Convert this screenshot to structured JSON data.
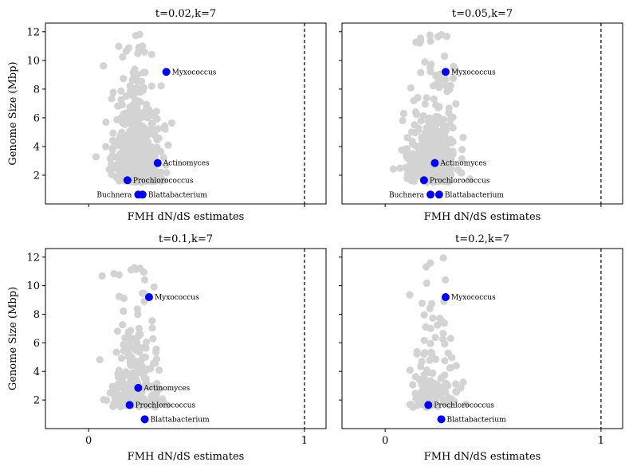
{
  "colors": {
    "background_points": "#d3d3d3",
    "highlight_points": "#0000ee",
    "refline": "#000000"
  },
  "shared": {
    "xlabel": "FMH dN/dS estimates",
    "ylabel": "Genome Size (Mbp)",
    "xticks": [
      0,
      1
    ],
    "yticks": [
      2,
      4,
      6,
      8,
      10,
      12
    ],
    "xlim": [
      -0.2,
      1.1
    ],
    "ylim": [
      0.0,
      12.6
    ],
    "refline_x": 1
  },
  "chart_data": [
    {
      "type": "scatter",
      "title": "t=0.02,k=7",
      "highlights": [
        {
          "label": "Myxococcus",
          "x": 0.36,
          "y": 9.2,
          "side": "right"
        },
        {
          "label": "Actinomyces",
          "x": 0.32,
          "y": 2.85,
          "side": "right"
        },
        {
          "label": "Prochlorococcus",
          "x": 0.18,
          "y": 1.65,
          "side": "right"
        },
        {
          "label": "Buchnera",
          "x": 0.23,
          "y": 0.65,
          "side": "left"
        },
        {
          "label": "Blattabacterium",
          "x": 0.25,
          "y": 0.65,
          "side": "right"
        }
      ]
    },
    {
      "type": "scatter",
      "title": "t=0.05,k=7",
      "highlights": [
        {
          "label": "Myxococcus",
          "x": 0.28,
          "y": 9.2,
          "side": "right"
        },
        {
          "label": "Actinomyces",
          "x": 0.23,
          "y": 2.85,
          "side": "right"
        },
        {
          "label": "Prochlorococcus",
          "x": 0.18,
          "y": 1.65,
          "side": "right"
        },
        {
          "label": "Buchnera",
          "x": 0.21,
          "y": 0.65,
          "side": "left"
        },
        {
          "label": "Blattabacterium",
          "x": 0.25,
          "y": 0.65,
          "side": "right"
        }
      ]
    },
    {
      "type": "scatter",
      "title": "t=0.1,k=7",
      "highlights": [
        {
          "label": "Myxococcus",
          "x": 0.28,
          "y": 9.2,
          "side": "right"
        },
        {
          "label": "Actinomyces",
          "x": 0.23,
          "y": 2.85,
          "side": "right"
        },
        {
          "label": "Prochlorococcus",
          "x": 0.19,
          "y": 1.65,
          "side": "right"
        },
        {
          "label": "Blattabacterium",
          "x": 0.26,
          "y": 0.65,
          "side": "right"
        }
      ]
    },
    {
      "type": "scatter",
      "title": "t=0.2,k=7",
      "highlights": [
        {
          "label": "Myxococcus",
          "x": 0.28,
          "y": 9.2,
          "side": "right"
        },
        {
          "label": "Prochlorococcus",
          "x": 0.2,
          "y": 1.65,
          "side": "right"
        },
        {
          "label": "Blattabacterium",
          "x": 0.26,
          "y": 0.65,
          "side": "right"
        }
      ]
    }
  ]
}
